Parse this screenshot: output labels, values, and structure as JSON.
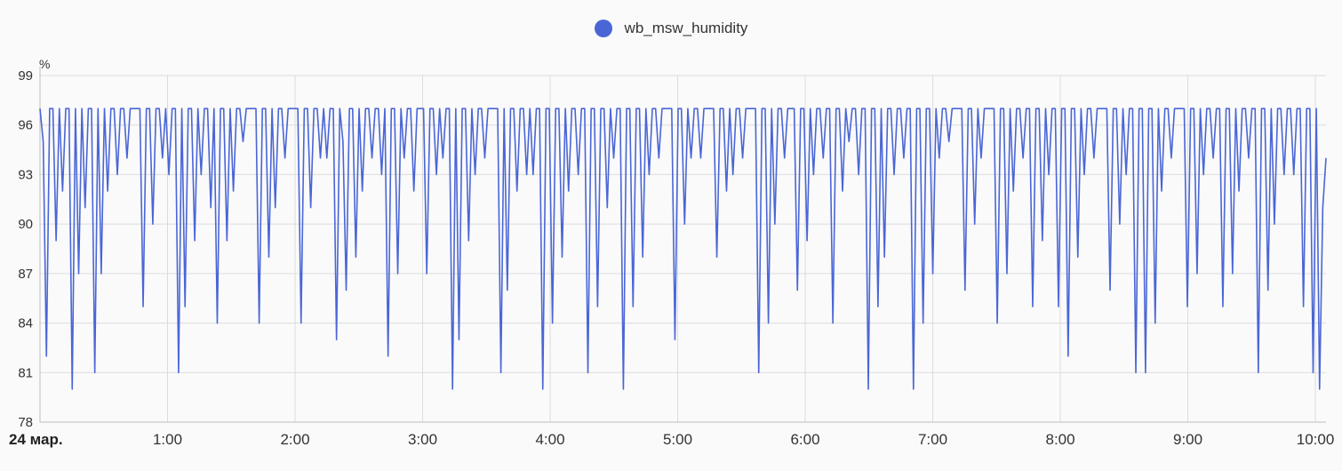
{
  "chart_data": {
    "type": "line",
    "legend": {
      "position": "top-center"
    },
    "series": [
      {
        "name": "wb_msw_humidity",
        "color": "#4a66d6",
        "y": [
          97,
          95,
          82,
          97,
          97,
          89,
          97,
          92,
          97,
          97,
          80,
          97,
          87,
          97,
          91,
          97,
          97,
          81,
          97,
          87,
          97,
          92,
          97,
          97,
          93,
          97,
          97,
          94,
          97,
          97,
          97,
          97,
          85,
          97,
          97,
          90,
          97,
          97,
          94,
          97,
          93,
          97,
          97,
          81,
          97,
          85,
          97,
          97,
          89,
          97,
          93,
          97,
          97,
          91,
          97,
          84,
          97,
          97,
          89,
          97,
          92,
          97,
          97,
          95,
          97,
          97,
          97,
          97,
          84,
          97,
          97,
          88,
          97,
          91,
          97,
          97,
          94,
          97,
          97,
          97,
          97,
          84,
          97,
          97,
          91,
          97,
          97,
          94,
          97,
          94,
          97,
          97,
          83,
          97,
          95,
          86,
          97,
          97,
          88,
          97,
          92,
          97,
          97,
          94,
          97,
          97,
          93,
          97,
          82,
          97,
          97,
          87,
          97,
          94,
          97,
          97,
          92,
          97,
          97,
          97,
          87,
          97,
          97,
          93,
          97,
          94,
          97,
          97,
          80,
          97,
          83,
          97,
          97,
          89,
          97,
          93,
          97,
          97,
          94,
          97,
          97,
          97,
          97,
          81,
          97,
          86,
          97,
          97,
          92,
          97,
          97,
          93,
          97,
          93,
          97,
          97,
          80,
          97,
          97,
          84,
          97,
          97,
          88,
          97,
          92,
          97,
          97,
          93,
          97,
          97,
          81,
          97,
          97,
          85,
          97,
          97,
          91,
          97,
          94,
          97,
          97,
          80,
          97,
          97,
          85,
          97,
          97,
          88,
          97,
          93,
          97,
          97,
          94,
          97,
          97,
          97,
          97,
          83,
          97,
          97,
          90,
          97,
          94,
          97,
          97,
          94,
          97,
          97,
          97,
          97,
          88,
          97,
          97,
          92,
          97,
          93,
          97,
          97,
          94,
          97,
          97,
          97,
          97,
          81,
          97,
          97,
          84,
          97,
          90,
          97,
          97,
          94,
          97,
          97,
          97,
          86,
          97,
          97,
          89,
          97,
          93,
          97,
          97,
          94,
          97,
          97,
          84,
          97,
          97,
          92,
          97,
          95,
          97,
          97,
          93,
          97,
          97,
          80,
          97,
          97,
          85,
          97,
          88,
          97,
          97,
          93,
          97,
          97,
          94,
          97,
          97,
          80,
          97,
          97,
          84,
          97,
          97,
          87,
          97,
          94,
          97,
          97,
          95,
          97,
          97,
          97,
          97,
          86,
          97,
          97,
          90,
          97,
          94,
          97,
          97,
          97,
          97,
          84,
          97,
          97,
          87,
          97,
          92,
          97,
          97,
          94,
          97,
          97,
          85,
          97,
          97,
          89,
          97,
          93,
          97,
          97,
          85,
          97,
          97,
          82,
          97,
          97,
          88,
          97,
          93,
          97,
          97,
          94,
          97,
          97,
          97,
          97,
          86,
          97,
          97,
          90,
          97,
          93,
          97,
          97,
          81,
          97,
          97,
          81,
          97,
          97,
          84,
          97,
          92,
          97,
          97,
          94,
          97,
          97,
          97,
          97,
          85,
          97,
          97,
          87,
          97,
          93,
          97,
          97,
          94,
          97,
          97,
          85,
          97,
          97,
          87,
          97,
          92,
          97,
          97,
          94,
          97,
          97,
          81,
          97,
          97,
          86,
          97,
          90,
          97,
          97,
          93,
          97,
          97,
          93,
          97,
          97,
          85,
          97,
          97,
          81,
          97,
          80,
          91,
          94
        ]
      }
    ],
    "x_range": [
      "2024-03-24T00:00",
      "2024-03-24T10:05"
    ],
    "y_unit": "%",
    "ylim": [
      78,
      99
    ],
    "yticks": [
      "78",
      "81",
      "84",
      "87",
      "90",
      "93",
      "96",
      "99"
    ],
    "xticks": [
      {
        "label": "24 мар.",
        "time": "00:00",
        "bold": true
      },
      {
        "label": "1:00",
        "time": "01:00"
      },
      {
        "label": "2:00",
        "time": "02:00"
      },
      {
        "label": "3:00",
        "time": "03:00"
      },
      {
        "label": "4:00",
        "time": "04:00"
      },
      {
        "label": "5:00",
        "time": "05:00"
      },
      {
        "label": "6:00",
        "time": "06:00"
      },
      {
        "label": "7:00",
        "time": "07:00"
      },
      {
        "label": "8:00",
        "time": "08:00"
      },
      {
        "label": "9:00",
        "time": "09:00"
      },
      {
        "label": "10:00",
        "time": "10:00"
      }
    ],
    "grid": true
  }
}
